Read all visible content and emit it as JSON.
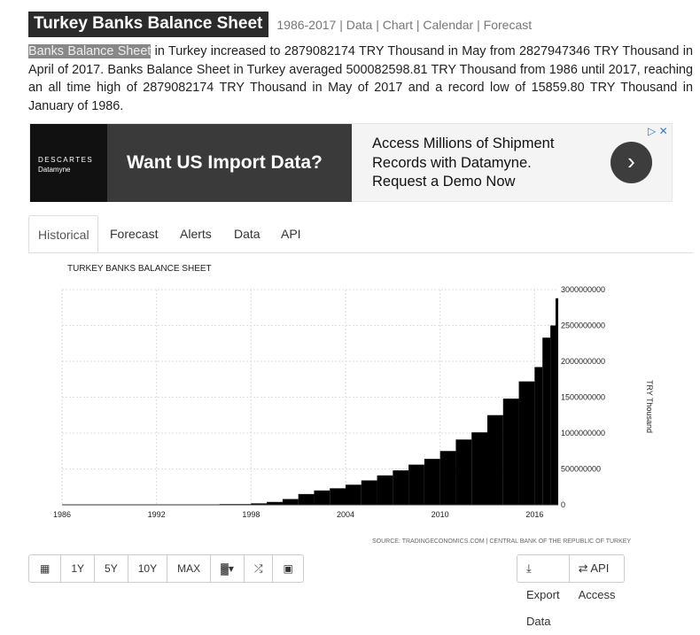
{
  "header": {
    "title": "Turkey Banks Balance Sheet",
    "nav_range": "1986-2017",
    "nav_items": [
      "Data",
      "Chart",
      "Calendar",
      "Forecast"
    ]
  },
  "description": {
    "highlight": "Banks Balance Sheet",
    "text": " in Turkey increased to 2879082174 TRY Thousand in May from 2827947346 TRY Thousand in April of 2017. Banks Balance Sheet in Turkey averaged 500082598.81 TRY Thousand from 1986 until 2017, reaching an all time high of 2879082174 TRY Thousand in May of 2017 and a record low of 15859.80 TRY Thousand in January of 1986."
  },
  "ad": {
    "logo_line1": "DESCARTES",
    "logo_line2": "Datamyne",
    "banner": "Want US Import Data?",
    "line1": "Access Millions of Shipment",
    "line2": "Records with Datamyne.",
    "line3": "Request a Demo Now"
  },
  "tabs": [
    "Historical",
    "Forecast",
    "Alerts",
    "Data",
    "API"
  ],
  "chart_data": {
    "type": "bar",
    "title": "TURKEY BANKS BALANCE SHEET",
    "ylabel": "TRY Thousand",
    "source": "SOURCE: TRADINGECONOMICS.COM | CENTRAL BANK OF THE REPUBLIC OF TURKEY",
    "x_ticks": [
      "1986",
      "1992",
      "1998",
      "2004",
      "2010",
      "2016"
    ],
    "y_ticks": [
      "0",
      "500000000",
      "1000000000",
      "1500000000",
      "2000000000",
      "2500000000",
      "3000000000"
    ],
    "ylim": [
      0,
      3000000000
    ],
    "xlim": [
      1986,
      2017.5
    ],
    "grid": true,
    "x": [
      1986,
      1988,
      1990,
      1992,
      1994,
      1996,
      1998,
      1999,
      2000,
      2001,
      2002,
      2003,
      2004,
      2005,
      2006,
      2007,
      2008,
      2009,
      2010,
      2011,
      2012,
      2013,
      2014,
      2015,
      2016,
      2016.5,
      2017,
      2017.33
    ],
    "values": [
      15859.8,
      100000,
      1000000,
      2000000,
      5000000,
      10000000,
      20000000,
      40000000,
      80000000,
      150000000,
      200000000,
      230000000,
      280000000,
      340000000,
      410000000,
      480000000,
      560000000,
      640000000,
      750000000,
      910000000,
      1010000000,
      1250000000,
      1480000000,
      1720000000,
      1920000000,
      2330000000,
      2500000000,
      2879082174
    ]
  },
  "toolbar": {
    "ranges": [
      "1Y",
      "5Y",
      "10Y",
      "MAX"
    ],
    "export": "Export Data",
    "api": "API Access"
  }
}
